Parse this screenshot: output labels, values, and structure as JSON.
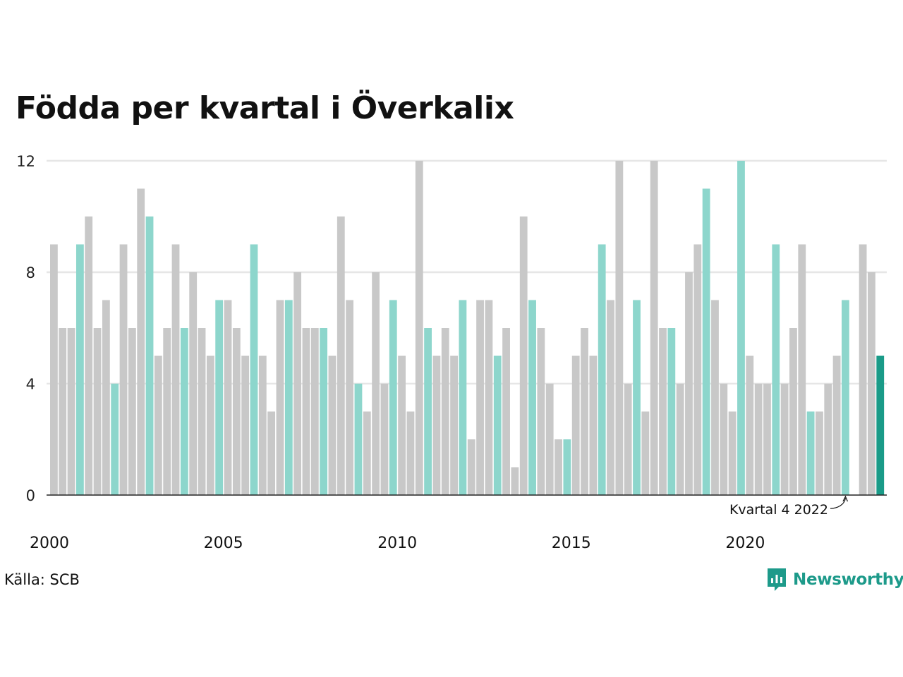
{
  "title": "Födda per kvartal i Överkalix",
  "source": "Källa: SCB",
  "brand": {
    "name": "Newsworthy",
    "icon": "newsworthy-logo-icon"
  },
  "colors": {
    "gray_bar": "#c8c8c8",
    "q4_bar": "#8dd6cc",
    "highlight_bar": "#1a9b88",
    "gridline": "#e6e6e6",
    "axis": "#222222",
    "brand": "#1d9a8a"
  },
  "chart_data": {
    "type": "bar",
    "title": "Födda per kvartal i Överkalix",
    "xlabel": "",
    "ylabel": "",
    "ylim": [
      0,
      12
    ],
    "yticks": [
      "0",
      "4",
      "8",
      "12"
    ],
    "xticks": [
      "2000",
      "2005",
      "2010",
      "2015",
      "2020"
    ],
    "grid": true,
    "start": "2000 Q1",
    "values": [
      9,
      6,
      6,
      9,
      10,
      6,
      7,
      4,
      9,
      6,
      11,
      10,
      5,
      6,
      9,
      6,
      8,
      6,
      5,
      7,
      7,
      6,
      5,
      9,
      5,
      3,
      7,
      7,
      8,
      6,
      6,
      6,
      5,
      10,
      7,
      4,
      3,
      8,
      4,
      7,
      5,
      3,
      12,
      6,
      5,
      6,
      5,
      7,
      2,
      7,
      7,
      5,
      6,
      1,
      10,
      7,
      6,
      4,
      2,
      2,
      5,
      6,
      5,
      9,
      7,
      12,
      4,
      7,
      3,
      12,
      6,
      6,
      4,
      8,
      9,
      11,
      7,
      4,
      3,
      12,
      5,
      4,
      4,
      9,
      4,
      6,
      9,
      3,
      3,
      4,
      5,
      7,
      0,
      9,
      8,
      5
    ],
    "highlight_index": 95,
    "annotation": {
      "text": "Kvartal 4 2022",
      "target_index": 91
    }
  }
}
